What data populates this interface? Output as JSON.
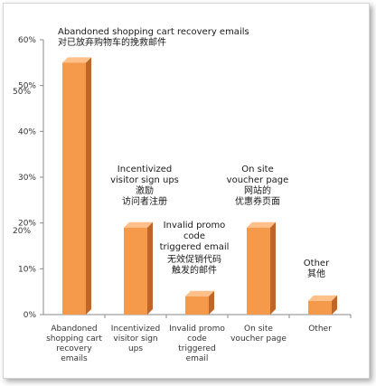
{
  "chart_data": {
    "type": "bar",
    "categories": [
      [
        "Abandoned",
        "shopping cart",
        "recovery",
        "emails"
      ],
      [
        "Incentivized",
        "visitor sign",
        "ups"
      ],
      [
        "Invalid promo",
        "code",
        "triggered",
        "email"
      ],
      [
        "On site",
        "voucher page"
      ],
      [
        "Other"
      ]
    ],
    "values": [
      55,
      19,
      4,
      19,
      3
    ],
    "ylim": [
      0,
      60
    ],
    "yticks": [
      "0%",
      "10%",
      "20%",
      "30%",
      "40%",
      "50%",
      "60%"
    ],
    "grid": false,
    "legend": "none",
    "bar_color": "#f59a4a",
    "bar_side_color": "#c0652a",
    "bar_top_color": "#ffc08a"
  },
  "annotations": {
    "abandoned": {
      "en": "Abandoned shopping cart recovery emails",
      "zh": "对已放弃购物车的挽救邮件"
    },
    "incentivized": {
      "en": [
        "Incentivized",
        "visitor sign ups"
      ],
      "zh": [
        "激励",
        "访问者注册"
      ]
    },
    "invalid": {
      "en": [
        "Invalid promo",
        "code",
        "triggered email"
      ],
      "zh": [
        "无效促销代码",
        "触发的邮件"
      ]
    },
    "onsite": {
      "en": [
        "On site",
        "voucher page"
      ],
      "zh": [
        "网站的",
        "优惠券页面"
      ]
    },
    "other": {
      "en": [
        "Other"
      ],
      "zh": [
        "其他"
      ]
    },
    "ytick_zh_50": "50%",
    "ytick_zh_20": "20%"
  }
}
